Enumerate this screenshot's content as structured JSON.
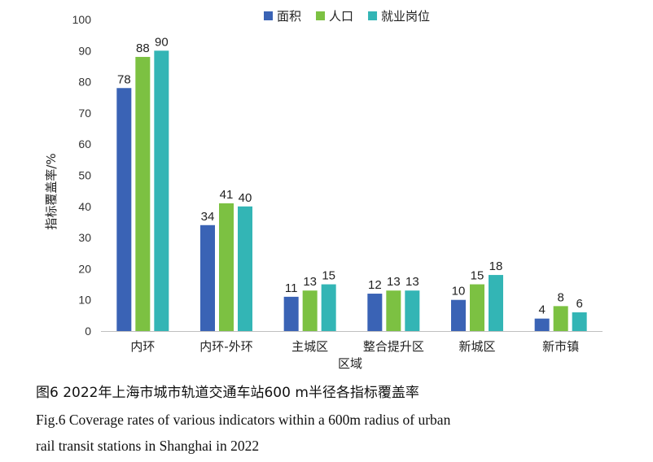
{
  "chart_data": {
    "type": "bar",
    "categories": [
      "内环",
      "内环-外环",
      "主城区",
      "整合提升区",
      "新城区",
      "新市镇"
    ],
    "series": [
      {
        "name": "面积",
        "color": "#3a63b5",
        "values": [
          78,
          34,
          11,
          12,
          10,
          4
        ]
      },
      {
        "name": "人口",
        "color": "#7cc142",
        "values": [
          88,
          41,
          13,
          13,
          15,
          8
        ]
      },
      {
        "name": "就业岗位",
        "color": "#33b5b5",
        "values": [
          90,
          40,
          15,
          13,
          18,
          6
        ]
      }
    ],
    "xlabel": "区域",
    "ylabel": "指标覆盖率/%",
    "ylim": [
      0,
      100
    ],
    "yticks": [
      0,
      10,
      20,
      30,
      40,
      50,
      60,
      70,
      80,
      90,
      100
    ],
    "grid": false,
    "legend_position": "top-center"
  },
  "caption": {
    "zh": "图6  2022年上海市城市轨道交通车站600 m半径各指标覆盖率",
    "en_line1": "Fig.6  Coverage rates of various indicators within a 600m radius of urban",
    "en_line2": "rail transit stations in Shanghai in 2022"
  }
}
